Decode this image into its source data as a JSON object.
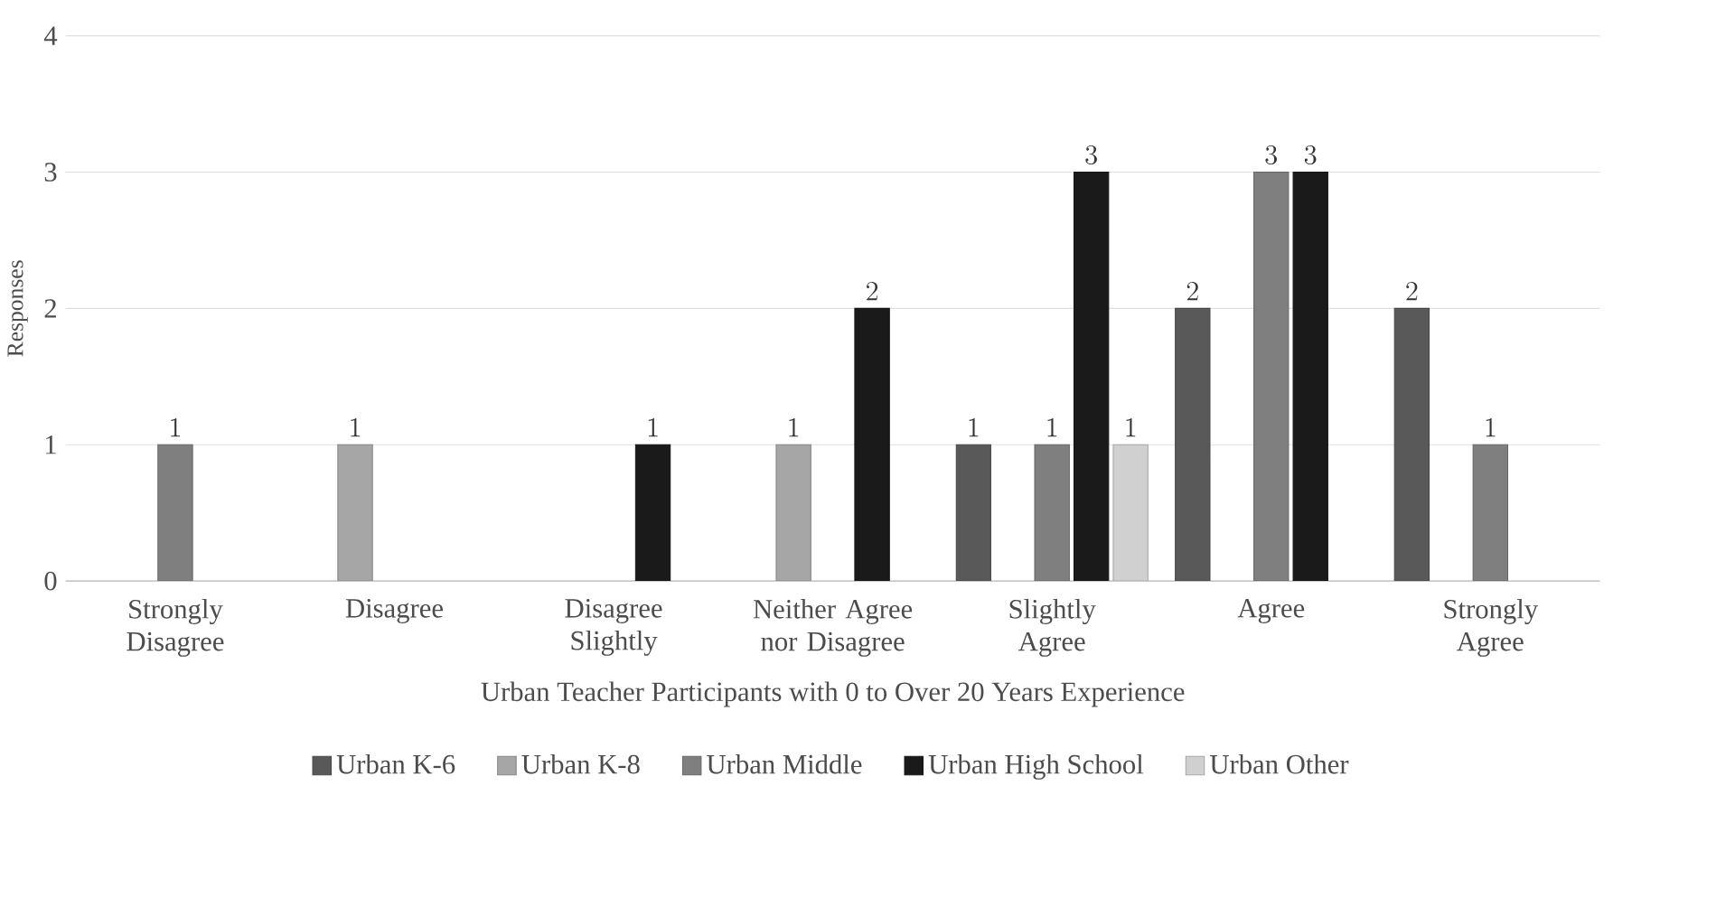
{
  "chart_data": {
    "type": "bar",
    "xlabel": "Urban Teacher Participants with 0 to Over 20 Years Experience",
    "ylabel": "Responses",
    "categories": [
      "Strongly Disagree",
      "Disagree",
      "Disagree Slightly",
      "Neither Agree nor Disagree",
      "Slightly Agree",
      "Agree",
      "Strongly Agree"
    ],
    "series": [
      {
        "name": "Urban K-6",
        "color": "#595959",
        "values": [
          null,
          null,
          null,
          null,
          1,
          2,
          2
        ]
      },
      {
        "name": "Urban K-8",
        "color": "#a6a6a6",
        "values": [
          null,
          1,
          null,
          1,
          null,
          null,
          null
        ]
      },
      {
        "name": "Urban Middle",
        "color": "#7f7f7f",
        "values": [
          1,
          null,
          null,
          null,
          1,
          3,
          1
        ]
      },
      {
        "name": "Urban High School",
        "color": "#1a1a1a",
        "values": [
          null,
          null,
          1,
          2,
          3,
          3,
          null
        ]
      },
      {
        "name": "Urban Other",
        "color": "#d0d0d0",
        "values": [
          null,
          null,
          null,
          null,
          1,
          null,
          null
        ]
      }
    ],
    "ylim": [
      0,
      4
    ],
    "yticks": [
      0,
      1,
      2,
      3,
      4
    ],
    "grid": "y",
    "legend": "bottom",
    "data_labels": true
  }
}
